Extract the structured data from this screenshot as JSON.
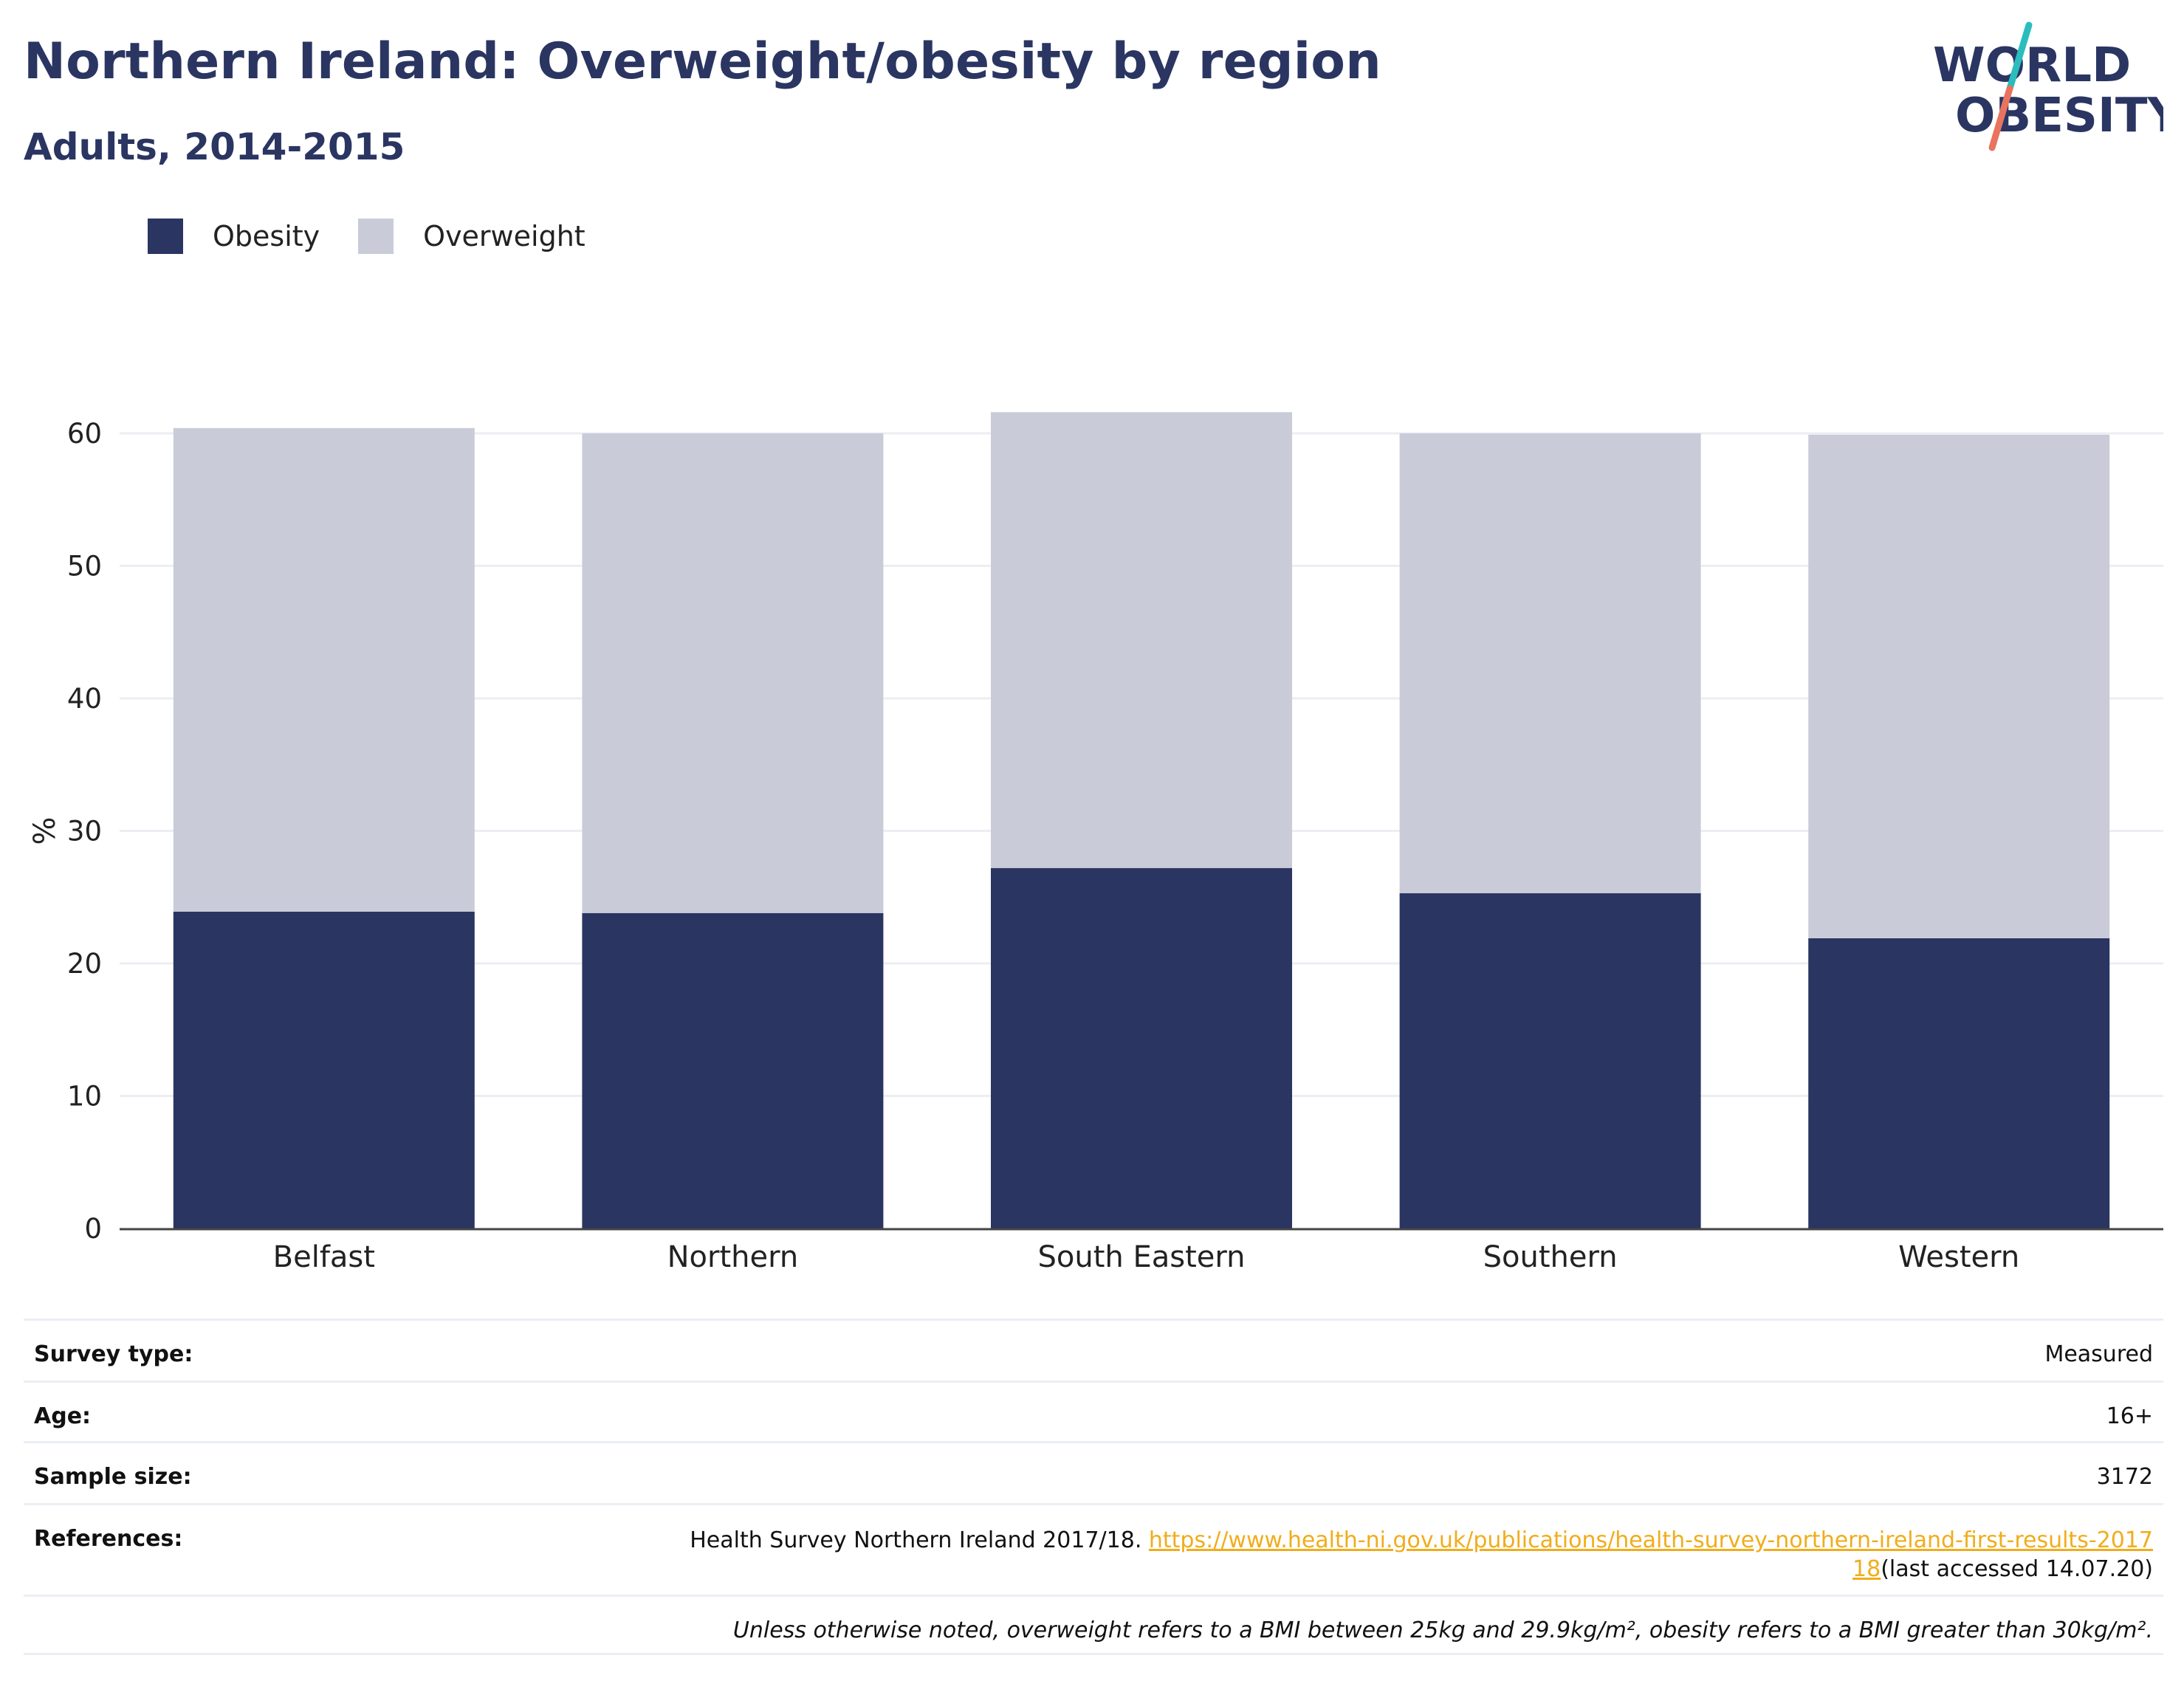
{
  "header": {
    "title": "Northern Ireland: Overweight/obesity by region",
    "subtitle": "Adults, 2014-2015",
    "logo_text_top": "WORLD",
    "logo_text_bottom": "OBESITY"
  },
  "colors": {
    "obesity": "#2a3562",
    "overweight": "#c9ccd8",
    "title": "#2a3562",
    "link": "#f0ad1b",
    "logo_teal": "#2bbdbd",
    "logo_coral": "#e8735f"
  },
  "chart_data": {
    "type": "bar",
    "stacked": true,
    "categories": [
      "Belfast",
      "Northern",
      "South Eastern",
      "Southern",
      "Western"
    ],
    "series": [
      {
        "name": "Obesity",
        "values": [
          23.9,
          23.8,
          27.2,
          25.3,
          21.9
        ]
      },
      {
        "name": "Overweight",
        "values": [
          36.5,
          36.2,
          34.4,
          34.7,
          38.0
        ]
      }
    ],
    "ylabel": "%",
    "xlabel": "",
    "ylim": [
      0,
      65
    ],
    "yticks": [
      0,
      10,
      20,
      30,
      40,
      50,
      60
    ],
    "grid": true,
    "legend_position": "top-left"
  },
  "info": {
    "survey_type_label": "Survey type:",
    "survey_type_value": "Measured",
    "age_label": "Age:",
    "age_value": "16+",
    "sample_size_label": "Sample size:",
    "sample_size_value": "3172",
    "references_label": "References:",
    "reference_text": "Health Survey Northern Ireland 2017/18. ",
    "reference_link": "https://www.health-ni.gov.uk/publications/health-survey-northern-ireland-first-results-201718",
    "reference_suffix": "(last accessed 14.07.20)",
    "footnote": "Unless otherwise noted, overweight refers to a BMI between 25kg and 29.9kg/m², obesity refers to a BMI greater than 30kg/m²."
  }
}
